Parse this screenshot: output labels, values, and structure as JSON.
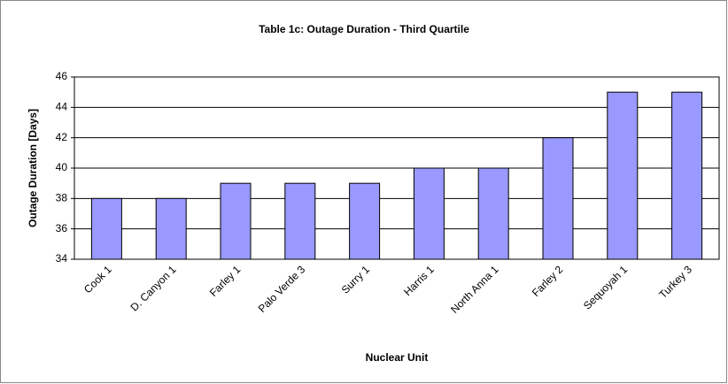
{
  "chart_data": {
    "type": "bar",
    "title": "Table 1c: Outage Duration - Third Quartile",
    "x_label": "Nuclear Unit",
    "y_label": "Outage Duration [Days]",
    "categories": [
      "Cook 1",
      "D. Canyon 1",
      "Farley 1",
      "Palo Verde 3",
      "Surry 1",
      "Harris 1",
      "North Anna 1",
      "Farley 2",
      "Sequoyah 1",
      "Turkey 3"
    ],
    "values": [
      38,
      38,
      39,
      39,
      39,
      40,
      40,
      42,
      45,
      45
    ],
    "color": "#9999ff",
    "ylim": [
      34,
      46
    ],
    "yticks": [
      34,
      36,
      38,
      40,
      42,
      44,
      46
    ],
    "grid": true
  }
}
